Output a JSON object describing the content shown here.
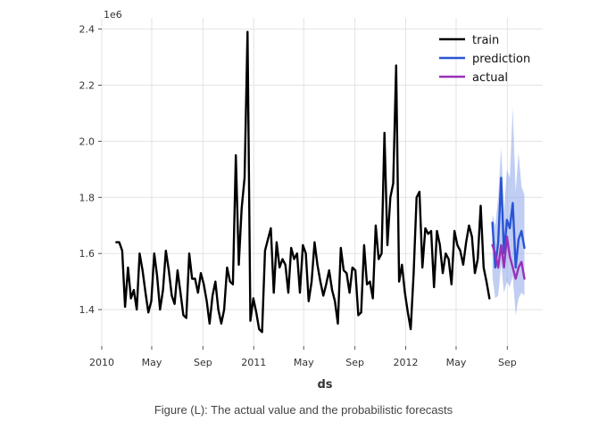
{
  "caption": "Figure (L): The actual value and the probabilistic forecasts",
  "chart_data": {
    "type": "line",
    "xlabel": "ds",
    "ylabel": "",
    "y_multiplier_label": "1e6",
    "xlim": [
      "2010-01-01",
      "2012-11-25"
    ],
    "ylim": [
      1.27,
      2.44
    ],
    "x_ticks": [
      {
        "date": "2010-01-01",
        "label": "2010"
      },
      {
        "date": "2010-05-01",
        "label": "May"
      },
      {
        "date": "2010-09-01",
        "label": "Sep"
      },
      {
        "date": "2011-01-01",
        "label": "2011"
      },
      {
        "date": "2011-05-01",
        "label": "May"
      },
      {
        "date": "2011-09-01",
        "label": "Sep"
      },
      {
        "date": "2012-01-01",
        "label": "2012"
      },
      {
        "date": "2012-05-01",
        "label": "May"
      },
      {
        "date": "2012-09-01",
        "label": "Sep"
      }
    ],
    "y_ticks": [
      {
        "value": 1.4,
        "label": "1.4"
      },
      {
        "value": 1.6,
        "label": "1.6"
      },
      {
        "value": 1.8,
        "label": "1.8"
      },
      {
        "value": 2.0,
        "label": "2.0"
      },
      {
        "value": 2.2,
        "label": "2.2"
      },
      {
        "value": 2.4,
        "label": "2.4"
      }
    ],
    "grid": true,
    "legend_position": "top-right",
    "series": [
      {
        "name": "train",
        "color": "#000000",
        "points": [
          [
            "2010-02-05",
            1.64
          ],
          [
            "2010-02-12",
            1.64
          ],
          [
            "2010-02-19",
            1.61
          ],
          [
            "2010-02-26",
            1.41
          ],
          [
            "2010-03-05",
            1.55
          ],
          [
            "2010-03-12",
            1.44
          ],
          [
            "2010-03-19",
            1.47
          ],
          [
            "2010-03-26",
            1.4
          ],
          [
            "2010-04-02",
            1.6
          ],
          [
            "2010-04-09",
            1.54
          ],
          [
            "2010-04-16",
            1.46
          ],
          [
            "2010-04-23",
            1.39
          ],
          [
            "2010-04-30",
            1.43
          ],
          [
            "2010-05-07",
            1.6
          ],
          [
            "2010-05-14",
            1.52
          ],
          [
            "2010-05-21",
            1.4
          ],
          [
            "2010-05-28",
            1.47
          ],
          [
            "2010-06-04",
            1.61
          ],
          [
            "2010-06-11",
            1.54
          ],
          [
            "2010-06-18",
            1.45
          ],
          [
            "2010-06-25",
            1.42
          ],
          [
            "2010-07-02",
            1.54
          ],
          [
            "2010-07-09",
            1.46
          ],
          [
            "2010-07-16",
            1.38
          ],
          [
            "2010-07-23",
            1.37
          ],
          [
            "2010-07-30",
            1.6
          ],
          [
            "2010-08-06",
            1.51
          ],
          [
            "2010-08-13",
            1.51
          ],
          [
            "2010-08-20",
            1.46
          ],
          [
            "2010-08-27",
            1.53
          ],
          [
            "2010-09-03",
            1.49
          ],
          [
            "2010-09-10",
            1.43
          ],
          [
            "2010-09-17",
            1.35
          ],
          [
            "2010-09-24",
            1.45
          ],
          [
            "2010-10-01",
            1.5
          ],
          [
            "2010-10-08",
            1.4
          ],
          [
            "2010-10-15",
            1.35
          ],
          [
            "2010-10-22",
            1.4
          ],
          [
            "2010-10-29",
            1.55
          ],
          [
            "2010-11-05",
            1.5
          ],
          [
            "2010-11-12",
            1.49
          ],
          [
            "2010-11-19",
            1.95
          ],
          [
            "2010-11-26",
            1.56
          ],
          [
            "2010-12-03",
            1.76
          ],
          [
            "2010-12-10",
            1.87
          ],
          [
            "2010-12-17",
            2.39
          ],
          [
            "2010-12-24",
            1.36
          ],
          [
            "2010-12-31",
            1.44
          ],
          [
            "2011-01-07",
            1.39
          ],
          [
            "2011-01-14",
            1.33
          ],
          [
            "2011-01-21",
            1.32
          ],
          [
            "2011-01-28",
            1.61
          ],
          [
            "2011-02-04",
            1.65
          ],
          [
            "2011-02-11",
            1.69
          ],
          [
            "2011-02-18",
            1.46
          ],
          [
            "2011-02-25",
            1.64
          ],
          [
            "2011-03-04",
            1.55
          ],
          [
            "2011-03-11",
            1.58
          ],
          [
            "2011-03-18",
            1.56
          ],
          [
            "2011-03-25",
            1.46
          ],
          [
            "2011-04-01",
            1.62
          ],
          [
            "2011-04-08",
            1.58
          ],
          [
            "2011-04-15",
            1.6
          ],
          [
            "2011-04-22",
            1.46
          ],
          [
            "2011-04-29",
            1.63
          ],
          [
            "2011-05-06",
            1.6
          ],
          [
            "2011-05-13",
            1.43
          ],
          [
            "2011-05-20",
            1.5
          ],
          [
            "2011-05-27",
            1.64
          ],
          [
            "2011-06-03",
            1.56
          ],
          [
            "2011-06-10",
            1.5
          ],
          [
            "2011-06-17",
            1.45
          ],
          [
            "2011-06-24",
            1.49
          ],
          [
            "2011-07-01",
            1.54
          ],
          [
            "2011-07-08",
            1.47
          ],
          [
            "2011-07-15",
            1.43
          ],
          [
            "2011-07-22",
            1.35
          ],
          [
            "2011-07-29",
            1.62
          ],
          [
            "2011-08-05",
            1.54
          ],
          [
            "2011-08-12",
            1.53
          ],
          [
            "2011-08-19",
            1.46
          ],
          [
            "2011-08-26",
            1.55
          ],
          [
            "2011-09-02",
            1.54
          ],
          [
            "2011-09-09",
            1.38
          ],
          [
            "2011-09-16",
            1.39
          ],
          [
            "2011-09-23",
            1.63
          ],
          [
            "2011-09-30",
            1.49
          ],
          [
            "2011-10-07",
            1.5
          ],
          [
            "2011-10-14",
            1.44
          ],
          [
            "2011-10-21",
            1.7
          ],
          [
            "2011-10-28",
            1.58
          ],
          [
            "2011-11-04",
            1.6
          ],
          [
            "2011-11-11",
            2.03
          ],
          [
            "2011-11-18",
            1.63
          ],
          [
            "2011-11-25",
            1.8
          ],
          [
            "2011-12-02",
            1.85
          ],
          [
            "2011-12-09",
            2.27
          ],
          [
            "2011-12-16",
            1.5
          ],
          [
            "2011-12-23",
            1.56
          ],
          [
            "2011-12-30",
            1.46
          ],
          [
            "2012-01-06",
            1.39
          ],
          [
            "2012-01-13",
            1.33
          ],
          [
            "2012-01-20",
            1.53
          ],
          [
            "2012-01-27",
            1.8
          ],
          [
            "2012-02-03",
            1.82
          ],
          [
            "2012-02-10",
            1.55
          ],
          [
            "2012-02-17",
            1.69
          ],
          [
            "2012-02-24",
            1.67
          ],
          [
            "2012-03-02",
            1.68
          ],
          [
            "2012-03-09",
            1.48
          ],
          [
            "2012-03-16",
            1.68
          ],
          [
            "2012-03-23",
            1.63
          ],
          [
            "2012-03-30",
            1.53
          ],
          [
            "2012-04-06",
            1.6
          ],
          [
            "2012-04-13",
            1.58
          ],
          [
            "2012-04-20",
            1.49
          ],
          [
            "2012-04-27",
            1.68
          ],
          [
            "2012-05-04",
            1.63
          ],
          [
            "2012-05-11",
            1.61
          ],
          [
            "2012-05-18",
            1.56
          ],
          [
            "2012-05-25",
            1.64
          ],
          [
            "2012-06-01",
            1.7
          ],
          [
            "2012-06-08",
            1.66
          ],
          [
            "2012-06-15",
            1.53
          ],
          [
            "2012-06-22",
            1.58
          ],
          [
            "2012-06-29",
            1.77
          ],
          [
            "2012-07-06",
            1.55
          ],
          [
            "2012-07-13",
            1.5
          ],
          [
            "2012-07-20",
            1.44
          ]
        ]
      },
      {
        "name": "prediction",
        "color": "#2a54d4",
        "band_color": "#8ea6ea",
        "points": [
          [
            "2012-07-27",
            1.71
          ],
          [
            "2012-08-03",
            1.55
          ],
          [
            "2012-08-10",
            1.64
          ],
          [
            "2012-08-17",
            1.87
          ],
          [
            "2012-08-24",
            1.6
          ],
          [
            "2012-08-31",
            1.72
          ],
          [
            "2012-09-07",
            1.69
          ],
          [
            "2012-09-14",
            1.78
          ],
          [
            "2012-09-21",
            1.55
          ],
          [
            "2012-09-28",
            1.65
          ],
          [
            "2012-10-05",
            1.68
          ],
          [
            "2012-10-12",
            1.62
          ]
        ],
        "lower": [
          1.52,
          1.44,
          1.45,
          1.56,
          1.46,
          1.5,
          1.48,
          1.52,
          1.38,
          1.44,
          1.46,
          1.45
        ],
        "upper": [
          1.74,
          1.7,
          1.8,
          1.98,
          1.75,
          1.9,
          1.87,
          2.12,
          1.82,
          1.96,
          1.84,
          1.81
        ]
      },
      {
        "name": "actual",
        "color": "#9930b8",
        "points": [
          [
            "2012-07-27",
            1.63
          ],
          [
            "2012-08-03",
            1.6
          ],
          [
            "2012-08-10",
            1.55
          ],
          [
            "2012-08-17",
            1.63
          ],
          [
            "2012-08-24",
            1.55
          ],
          [
            "2012-08-31",
            1.66
          ],
          [
            "2012-09-07",
            1.59
          ],
          [
            "2012-09-14",
            1.55
          ],
          [
            "2012-09-21",
            1.51
          ],
          [
            "2012-09-28",
            1.55
          ],
          [
            "2012-10-05",
            1.57
          ],
          [
            "2012-10-12",
            1.51
          ]
        ]
      }
    ]
  }
}
